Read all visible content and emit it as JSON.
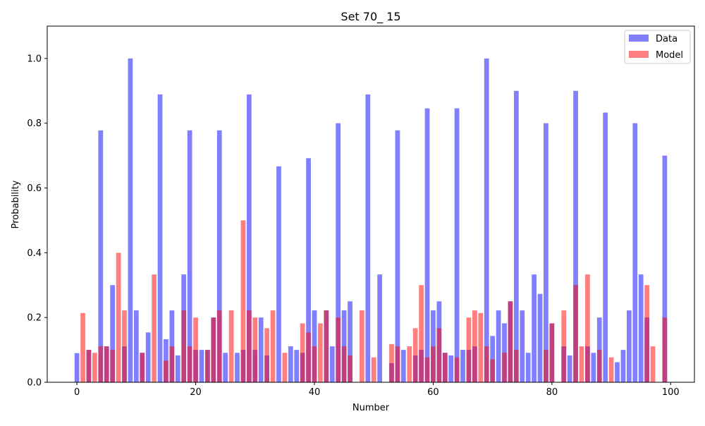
{
  "chart_data": {
    "type": "bar",
    "title": "Set 70_ 15",
    "xlabel": "Number",
    "ylabel": "Probability",
    "xlim": [
      -5,
      104
    ],
    "ylim": [
      0,
      1.1
    ],
    "xticks": [
      0,
      20,
      40,
      60,
      80,
      100
    ],
    "yticks": [
      0.0,
      0.2,
      0.4,
      0.6,
      0.8,
      1.0
    ],
    "ytick_labels": [
      "0.0",
      "0.2",
      "0.4",
      "0.6",
      "0.8",
      "1.0"
    ],
    "grid": false,
    "legend_position": "top-right",
    "colors": {
      "Data": "#0000ff",
      "Model": "#ff0000",
      "alpha": 0.5
    },
    "series": [
      {
        "name": "Data",
        "points": [
          [
            0,
            0.09
          ],
          [
            2,
            0.1
          ],
          [
            4,
            0.778
          ],
          [
            5,
            0.111
          ],
          [
            6,
            0.3
          ],
          [
            8,
            0.111
          ],
          [
            9,
            1.0
          ],
          [
            10,
            0.222
          ],
          [
            11,
            0.091
          ],
          [
            12,
            0.154
          ],
          [
            14,
            0.889
          ],
          [
            15,
            0.133
          ],
          [
            16,
            0.222
          ],
          [
            17,
            0.083
          ],
          [
            18,
            0.333
          ],
          [
            19,
            0.778
          ],
          [
            20,
            0.1
          ],
          [
            21,
            0.1
          ],
          [
            22,
            0.1
          ],
          [
            23,
            0.2
          ],
          [
            24,
            0.778
          ],
          [
            25,
            0.091
          ],
          [
            27,
            0.091
          ],
          [
            28,
            0.1
          ],
          [
            29,
            0.889
          ],
          [
            30,
            0.1
          ],
          [
            31,
            0.2
          ],
          [
            32,
            0.083
          ],
          [
            34,
            0.667
          ],
          [
            36,
            0.111
          ],
          [
            37,
            0.1
          ],
          [
            38,
            0.091
          ],
          [
            39,
            0.692
          ],
          [
            40,
            0.222
          ],
          [
            42,
            0.222
          ],
          [
            43,
            0.111
          ],
          [
            44,
            0.8
          ],
          [
            45,
            0.222
          ],
          [
            46,
            0.25
          ],
          [
            49,
            0.889
          ],
          [
            51,
            0.333
          ],
          [
            53,
            0.059
          ],
          [
            54,
            0.778
          ],
          [
            55,
            0.1
          ],
          [
            57,
            0.083
          ],
          [
            58,
            0.1
          ],
          [
            59,
            0.846
          ],
          [
            60,
            0.222
          ],
          [
            61,
            0.25
          ],
          [
            62,
            0.091
          ],
          [
            63,
            0.083
          ],
          [
            64,
            0.846
          ],
          [
            65,
            0.1
          ],
          [
            66,
            0.1
          ],
          [
            67,
            0.111
          ],
          [
            69,
            1.0
          ],
          [
            70,
            0.143
          ],
          [
            71,
            0.222
          ],
          [
            72,
            0.182
          ],
          [
            73,
            0.25
          ],
          [
            74,
            0.9
          ],
          [
            75,
            0.222
          ],
          [
            76,
            0.091
          ],
          [
            77,
            0.333
          ],
          [
            78,
            0.273
          ],
          [
            79,
            0.8
          ],
          [
            80,
            0.182
          ],
          [
            82,
            0.111
          ],
          [
            83,
            0.083
          ],
          [
            84,
            0.9
          ],
          [
            86,
            0.111
          ],
          [
            87,
            0.091
          ],
          [
            88,
            0.2
          ],
          [
            89,
            0.833
          ],
          [
            91,
            0.062
          ],
          [
            92,
            0.1
          ],
          [
            93,
            0.222
          ],
          [
            94,
            0.8
          ],
          [
            95,
            0.333
          ],
          [
            96,
            0.2
          ],
          [
            99,
            0.7
          ]
        ]
      },
      {
        "name": "Model",
        "points": [
          [
            1,
            0.214
          ],
          [
            2,
            0.1
          ],
          [
            3,
            0.091
          ],
          [
            4,
            0.111
          ],
          [
            5,
            0.111
          ],
          [
            6,
            0.1
          ],
          [
            7,
            0.4
          ],
          [
            8,
            0.222
          ],
          [
            11,
            0.091
          ],
          [
            13,
            0.333
          ],
          [
            15,
            0.067
          ],
          [
            16,
            0.111
          ],
          [
            18,
            0.222
          ],
          [
            19,
            0.111
          ],
          [
            20,
            0.2
          ],
          [
            22,
            0.1
          ],
          [
            23,
            0.2
          ],
          [
            24,
            0.222
          ],
          [
            26,
            0.222
          ],
          [
            28,
            0.5
          ],
          [
            29,
            0.222
          ],
          [
            30,
            0.2
          ],
          [
            32,
            0.167
          ],
          [
            33,
            0.222
          ],
          [
            35,
            0.091
          ],
          [
            38,
            0.182
          ],
          [
            39,
            0.154
          ],
          [
            40,
            0.111
          ],
          [
            41,
            0.182
          ],
          [
            42,
            0.222
          ],
          [
            44,
            0.2
          ],
          [
            45,
            0.111
          ],
          [
            46,
            0.083
          ],
          [
            48,
            0.222
          ],
          [
            50,
            0.077
          ],
          [
            53,
            0.118
          ],
          [
            54,
            0.111
          ],
          [
            56,
            0.111
          ],
          [
            57,
            0.167
          ],
          [
            58,
            0.3
          ],
          [
            59,
            0.077
          ],
          [
            60,
            0.111
          ],
          [
            61,
            0.167
          ],
          [
            62,
            0.091
          ],
          [
            64,
            0.077
          ],
          [
            66,
            0.2
          ],
          [
            67,
            0.222
          ],
          [
            68,
            0.214
          ],
          [
            69,
            0.111
          ],
          [
            70,
            0.071
          ],
          [
            72,
            0.091
          ],
          [
            73,
            0.25
          ],
          [
            74,
            0.1
          ],
          [
            79,
            0.1
          ],
          [
            80,
            0.182
          ],
          [
            82,
            0.222
          ],
          [
            84,
            0.3
          ],
          [
            85,
            0.111
          ],
          [
            86,
            0.333
          ],
          [
            88,
            0.1
          ],
          [
            90,
            0.077
          ],
          [
            96,
            0.3
          ],
          [
            97,
            0.111
          ],
          [
            99,
            0.2
          ]
        ]
      }
    ]
  }
}
